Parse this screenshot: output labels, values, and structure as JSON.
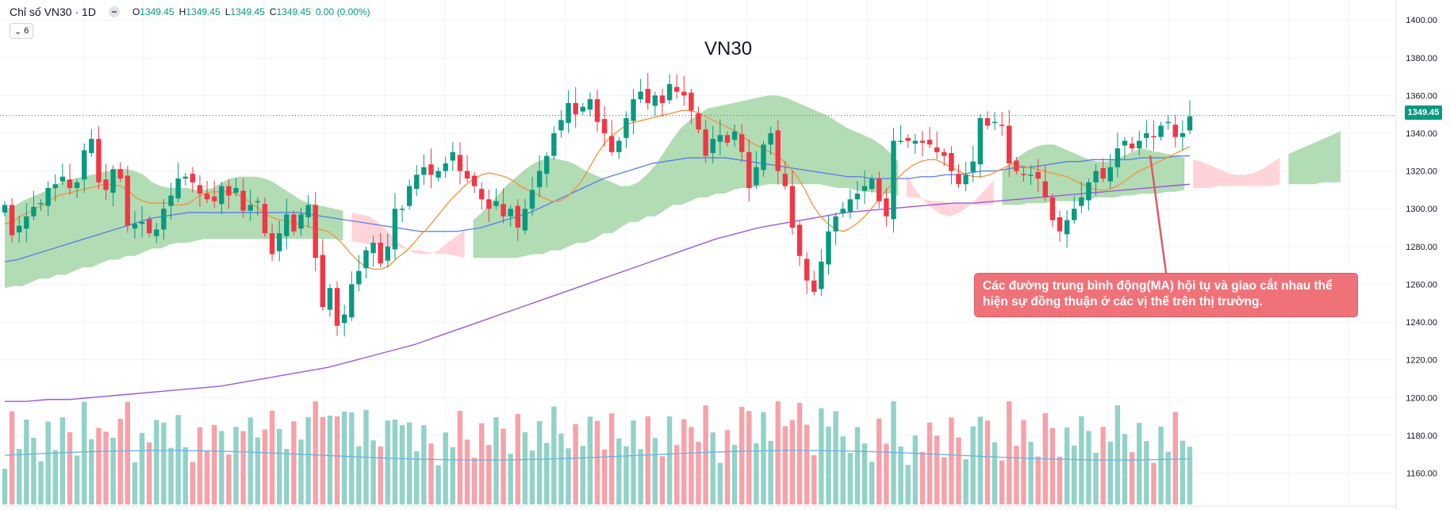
{
  "header": {
    "symbol": "Chỉ số VN30 · 1D",
    "open_key": "O",
    "open": "1349.45",
    "high_key": "H",
    "high": "1349.45",
    "low_key": "L",
    "low": "1349.45",
    "close_key": "C",
    "close": "1349.45",
    "change": "0.00 (0.00%)",
    "indicator_count": "6"
  },
  "annotation_text": "Các đường trung bình động(MA) hội tụ và giao cắt nhau thể hiện sự đồng thuận ở các vị thế trên thị trường.",
  "last_price_label": "1349.45",
  "colors": {
    "up": "#089981",
    "down": "#f23645",
    "vol_up": "#92d2c8",
    "vol_down": "#f7a1a8",
    "ma_short": "#f4923b",
    "ma_mid": "#5b7de8",
    "ma_long": "#9b59d6",
    "cloud_bull": "#a5d6a7",
    "cloud_bear": "#ffcdd2"
  },
  "chart_data": {
    "type": "candlestick",
    "title": "VN30",
    "y_axis_ticks": [
      1400,
      1380,
      1360,
      1340,
      1320,
      1300,
      1280,
      1260,
      1240,
      1220,
      1200,
      1180,
      1160
    ],
    "y_axis_tick_labels": [
      "1400.00",
      "1380.00",
      "1360.00",
      "1340.00",
      "1320.00",
      "1300.00",
      "1280.00",
      "1260.00",
      "1240.00",
      "1220.00",
      "1200.00",
      "1180.00",
      "1160.00"
    ],
    "ylim": [
      1156,
      1403
    ],
    "last_price": 1349.45,
    "closes": [
      1302,
      1286,
      1291,
      1296,
      1301,
      1303,
      1311,
      1313,
      1317,
      1311,
      1314,
      1331,
      1337,
      1314,
      1310,
      1321,
      1316,
      1291,
      1292,
      1293,
      1287,
      1289,
      1300,
      1307,
      1316,
      1317,
      1314,
      1308,
      1305,
      1304,
      1312,
      1307,
      1311,
      1299,
      1302,
      1304,
      1287,
      1276,
      1287,
      1297,
      1288,
      1297,
      1302,
      1274,
      1248,
      1258,
      1238,
      1244,
      1260,
      1267,
      1278,
      1282,
      1271,
      1280,
      1300,
      1300,
      1312,
      1318,
      1322,
      1318,
      1320,
      1324,
      1330,
      1320,
      1316,
      1312,
      1305,
      1300,
      1304,
      1296,
      1300,
      1290,
      1300,
      1310,
      1320,
      1328,
      1340,
      1347,
      1356,
      1350,
      1354,
      1358,
      1346,
      1340,
      1330,
      1336,
      1348,
      1358,
      1362,
      1356,
      1360,
      1356,
      1366,
      1362,
      1360,
      1352,
      1342,
      1328,
      1337,
      1339,
      1335,
      1341,
      1330,
      1311,
      1322,
      1334,
      1340,
      1320,
      1312,
      1290,
      1275,
      1262,
      1256,
      1272,
      1288,
      1296,
      1300,
      1305,
      1308,
      1312,
      1316,
      1304,
      1296,
      1336,
      1336,
      1336,
      1336,
      1335,
      1334,
      1330,
      1328,
      1320,
      1313,
      1318,
      1325,
      1348,
      1344,
      1346,
      1344,
      1324,
      1320,
      1318,
      1318,
      1316,
      1306,
      1294,
      1288,
      1294,
      1300,
      1306,
      1314,
      1320,
      1316,
      1322,
      1332,
      1336,
      1332,
      1336,
      1340,
      1338,
      1344,
      1346,
      1338,
      1340,
      1349
    ],
    "ma_short": [
      1292,
      1293,
      1296,
      1298,
      1300,
      1302,
      1305,
      1307,
      1308,
      1309,
      1310,
      1311,
      1312,
      1313,
      1313,
      1312,
      1310,
      1306,
      1304,
      1303,
      1303,
      1303,
      1302,
      1302,
      1303,
      1306,
      1308,
      1309,
      1309,
      1309,
      1308,
      1306,
      1303,
      1300,
      1297,
      1295,
      1294,
      1293,
      1292,
      1291,
      1290,
      1289,
      1288,
      1285,
      1281,
      1276,
      1272,
      1269,
      1268,
      1268,
      1270,
      1274,
      1277,
      1281,
      1286,
      1290,
      1295,
      1300,
      1305,
      1309,
      1313,
      1316,
      1318,
      1319,
      1318,
      1317,
      1315,
      1312,
      1310,
      1308,
      1306,
      1304,
      1304,
      1306,
      1310,
      1315,
      1322,
      1329,
      1335,
      1339,
      1342,
      1345,
      1346,
      1347,
      1348,
      1349,
      1350,
      1351,
      1352,
      1352,
      1351,
      1349,
      1347,
      1345,
      1343,
      1341,
      1338,
      1335,
      1333,
      1331,
      1329,
      1326,
      1322,
      1317,
      1310,
      1302,
      1296,
      1292,
      1289,
      1288,
      1290,
      1293,
      1297,
      1302,
      1307,
      1312,
      1316,
      1320,
      1323,
      1325,
      1326,
      1326,
      1324,
      1322,
      1320,
      1318,
      1317,
      1317,
      1318,
      1320,
      1322,
      1324,
      1323,
      1322,
      1321,
      1320,
      1319,
      1318,
      1317,
      1315,
      1313,
      1311,
      1310,
      1310,
      1311,
      1313,
      1316,
      1319,
      1321,
      1323,
      1325,
      1327,
      1329,
      1331,
      1333
    ],
    "ma_mid": [
      1272,
      1273,
      1275,
      1277,
      1279,
      1281,
      1283,
      1285,
      1287,
      1289,
      1291,
      1293,
      1295,
      1296,
      1297,
      1298,
      1298,
      1298,
      1298,
      1298,
      1298,
      1298,
      1298,
      1298,
      1298,
      1297,
      1296,
      1295,
      1294,
      1293,
      1292,
      1291,
      1290,
      1289,
      1288,
      1288,
      1288,
      1288,
      1289,
      1290,
      1292,
      1294,
      1296,
      1298,
      1301,
      1304,
      1307,
      1310,
      1313,
      1316,
      1318,
      1320,
      1322,
      1324,
      1325,
      1326,
      1327,
      1327,
      1327,
      1327,
      1326,
      1325,
      1324,
      1323,
      1322,
      1321,
      1320,
      1319,
      1318,
      1317,
      1317,
      1316,
      1316,
      1316,
      1316,
      1317,
      1317,
      1318,
      1318,
      1319,
      1320,
      1320,
      1321,
      1322,
      1322,
      1323,
      1324,
      1325,
      1325,
      1326,
      1326,
      1326,
      1326,
      1327,
      1327,
      1327,
      1328,
      1328
    ],
    "ma_long": [
      1198,
      1198,
      1199,
      1199,
      1200,
      1201,
      1202,
      1203,
      1204,
      1205,
      1206,
      1208,
      1210,
      1212,
      1214,
      1216,
      1219,
      1222,
      1225,
      1228,
      1232,
      1236,
      1240,
      1244,
      1248,
      1252,
      1256,
      1260,
      1264,
      1268,
      1272,
      1276,
      1280,
      1284,
      1287,
      1290,
      1292,
      1294,
      1296,
      1298,
      1299,
      1300,
      1301,
      1302,
      1303,
      1303,
      1304,
      1305,
      1306,
      1307,
      1308,
      1309,
      1310,
      1311,
      1312,
      1313
    ],
    "volume_note": "volume histogram with moving average shown at the bottom of the chart (no separate axis)"
  }
}
